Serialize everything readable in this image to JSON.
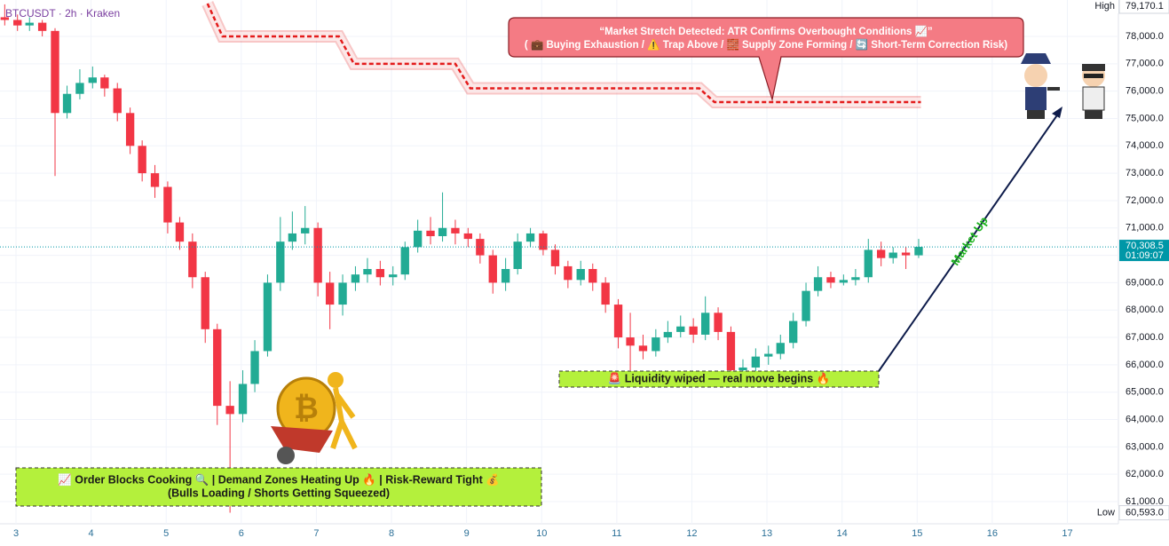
{
  "chart_data": {
    "type": "candlestick",
    "title": "BTCUSDT · 2h · Kraken",
    "x": [
      2.85,
      3.02,
      3.18,
      3.35,
      3.52,
      3.68,
      3.85,
      4.02,
      4.18,
      4.35,
      4.52,
      4.68,
      4.85,
      5.02,
      5.18,
      5.35,
      5.52,
      5.68,
      5.85,
      6.02,
      6.18,
      6.35,
      6.52,
      6.68,
      6.85,
      7.02,
      7.18,
      7.35,
      7.52,
      7.68,
      7.85,
      8.02,
      8.18,
      8.35,
      8.52,
      8.68,
      8.85,
      9.02,
      9.18,
      9.35,
      9.52,
      9.68,
      9.85,
      10.02,
      10.18,
      10.35,
      10.52,
      10.68,
      10.85,
      11.02,
      11.18,
      11.35,
      11.52,
      11.68,
      11.85,
      12.02,
      12.18,
      12.35,
      12.52,
      12.68,
      12.85,
      13.02,
      13.18,
      13.35,
      13.52,
      13.68,
      13.85,
      14.02,
      14.18,
      14.35,
      14.52,
      14.68,
      14.85,
      15.02
    ],
    "open": [
      78700,
      78600,
      78400,
      78500,
      78200,
      75200,
      75900,
      76300,
      76500,
      76100,
      75200,
      74000,
      73000,
      72500,
      71200,
      70500,
      69200,
      67300,
      64500,
      64200,
      65300,
      66500,
      69000,
      70500,
      70800,
      71000,
      69000,
      68200,
      69000,
      69300,
      69500,
      69200,
      69300,
      70300,
      70900,
      70700,
      71000,
      70800,
      70600,
      70000,
      69000,
      69500,
      70500,
      70800,
      70200,
      69600,
      69100,
      69500,
      69000,
      68200,
      67000,
      66700,
      66500,
      67000,
      67200,
      67400,
      67100,
      67900,
      67200,
      65800,
      65900,
      66300,
      66400,
      66800,
      67600,
      68700,
      69200,
      69000,
      69100,
      69200,
      70200,
      69900,
      70100,
      70000
    ],
    "high": [
      79170.1,
      78800,
      78700,
      78600,
      78300,
      76200,
      76800,
      76900,
      76600,
      76300,
      75400,
      74200,
      73300,
      72700,
      71400,
      70800,
      69400,
      67500,
      65400,
      65800,
      66900,
      69300,
      71400,
      71600,
      71800,
      71200,
      69400,
      69300,
      69600,
      69900,
      69800,
      69600,
      70500,
      71300,
      71400,
      72300,
      71300,
      71000,
      70800,
      70200,
      69900,
      70800,
      71000,
      70900,
      70400,
      69800,
      69800,
      69700,
      69200,
      68400,
      67900,
      67100,
      67300,
      67600,
      67800,
      67700,
      68500,
      68100,
      67400,
      66200,
      66600,
      66700,
      67100,
      67900,
      69000,
      69600,
      69400,
      69300,
      69500,
      70600,
      70500,
      70300,
      70300,
      70600
    ],
    "low": [
      78400,
      78200,
      78200,
      78000,
      72900,
      75000,
      75700,
      76100,
      75800,
      74900,
      73700,
      72700,
      72100,
      70800,
      70200,
      68800,
      66800,
      63800,
      60593,
      63900,
      65000,
      66300,
      68700,
      70200,
      70400,
      68500,
      67300,
      67800,
      68700,
      69000,
      68900,
      68900,
      69100,
      70100,
      70400,
      70500,
      70400,
      70300,
      69700,
      68600,
      68700,
      69300,
      70300,
      70000,
      69300,
      68800,
      68900,
      68700,
      67900,
      66600,
      65800,
      66200,
      66300,
      66800,
      67000,
      66800,
      66900,
      66900,
      65200,
      65500,
      65700,
      66000,
      66200,
      66600,
      67400,
      68500,
      68800,
      68900,
      68900,
      69000,
      69600,
      69700,
      69500,
      69900
    ],
    "close": [
      78600,
      78400,
      78500,
      78200,
      75200,
      75900,
      76300,
      76500,
      76100,
      75200,
      74000,
      73000,
      72500,
      71200,
      70500,
      69200,
      67300,
      64500,
      64200,
      65300,
      66500,
      69000,
      70500,
      70800,
      71000,
      69000,
      68200,
      69000,
      69300,
      69500,
      69200,
      69300,
      70300,
      70900,
      70700,
      71000,
      70800,
      70600,
      70000,
      69000,
      69500,
      70500,
      70800,
      70200,
      69600,
      69100,
      69500,
      69000,
      68200,
      67000,
      66700,
      66500,
      67000,
      67200,
      67400,
      67100,
      67900,
      67200,
      65800,
      65900,
      66300,
      66400,
      66800,
      67600,
      68700,
      69200,
      69000,
      69100,
      69200,
      70200,
      69900,
      70100,
      70000,
      70308.5
    ],
    "up_color": "#22ab94",
    "down_color": "#f23645",
    "xlim": [
      2.787,
      17.68
    ],
    "ylim": [
      60189,
      79330
    ],
    "xticks": [
      3,
      4,
      5,
      6,
      7,
      8,
      9,
      10,
      11,
      12,
      13,
      14,
      15,
      16,
      17
    ],
    "yticks": [
      {
        "value": 61000,
        "label": "61,000.0"
      },
      {
        "value": 62000,
        "label": "62,000.0"
      },
      {
        "value": 63000,
        "label": "63,000.0"
      },
      {
        "value": 64000,
        "label": "64,000.0"
      },
      {
        "value": 65000,
        "label": "65,000.0"
      },
      {
        "value": 66000,
        "label": "66,000.0"
      },
      {
        "value": 67000,
        "label": "67,000.0"
      },
      {
        "value": 68000,
        "label": "68,000.0"
      },
      {
        "value": 69000,
        "label": "69,000.0"
      },
      {
        "value": 70000,
        "label": "70,000.0"
      },
      {
        "value": 71000,
        "label": "71,000.0"
      },
      {
        "value": 72000,
        "label": "72,000.0"
      },
      {
        "value": 73000,
        "label": "73,000.0"
      },
      {
        "value": 74000,
        "label": "74,000.0"
      },
      {
        "value": 75000,
        "label": "75,000.0"
      },
      {
        "value": 76000,
        "label": "76,000.0"
      },
      {
        "value": 77000,
        "label": "77,000.0"
      },
      {
        "value": 78000,
        "label": "78,000.0"
      }
    ],
    "high_marker": {
      "text": "High",
      "value": 79170.1,
      "label": "79,170.1"
    },
    "low_marker": {
      "text": "Low",
      "value": 60593,
      "label": "60,593.0"
    },
    "last_price": {
      "value": 70308.5,
      "label": "70,308.5",
      "countdown": "01:09:07",
      "color": "#0097a7"
    },
    "band": {
      "x": [
        5.55,
        5.75,
        7.3,
        7.5,
        8.85,
        9.05,
        12.1,
        12.3,
        15.05
      ],
      "values": [
        79200,
        78000,
        78000,
        77000,
        77000,
        76100,
        76100,
        75600,
        75600
      ],
      "color": "#e31b1b"
    },
    "annotations": {
      "stretch": [
        "“Market Stretch Detected: ATR Confirms Overbought Conditions 📈”",
        "( 💼 Buying Exhaustion / ⚠️ Trap Above / 🧱 Supply Zone Forming / 🔄 Short-Term Correction Risk)"
      ],
      "liquidity": "🚨 Liquidity wiped — real move begins 🔥",
      "order_blocks": [
        "📈 Order Blocks Cooking 🔍 | Demand Zones Heating Up 🔥 | Risk-Reward Tight 💰",
        "(Bulls Loading / Shorts Getting Squeezed)"
      ],
      "market_up": "Market Up"
    }
  }
}
